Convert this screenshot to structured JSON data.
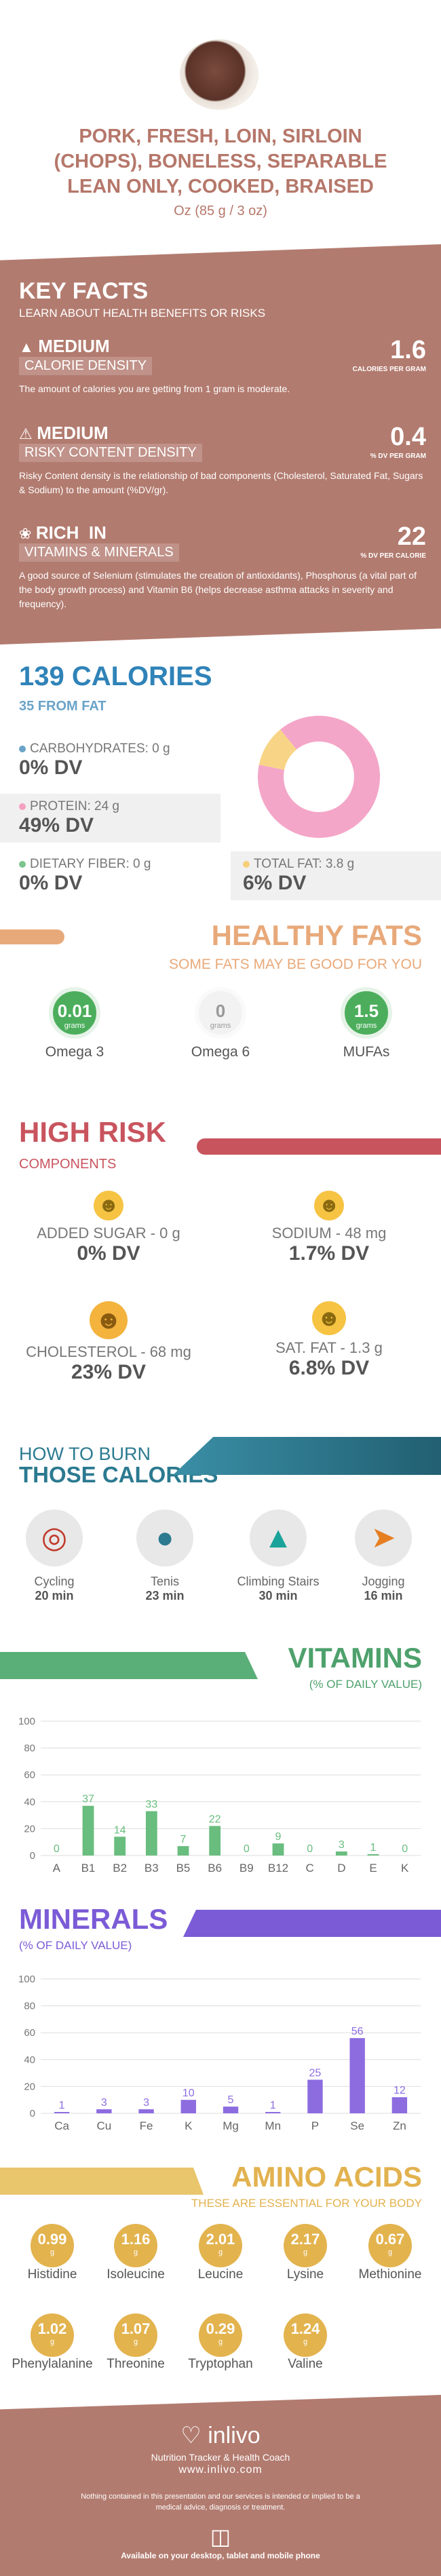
{
  "header": {
    "title_lines": [
      "PORK, FRESH, LOIN, SIRLOIN",
      "(CHOPS), BONELESS, SEPARABLE",
      "LEAN ONLY, COOKED, BRAISED"
    ],
    "serving": "Oz (85 g / 3 oz)"
  },
  "key_facts": {
    "title": "KEY FACTS",
    "subtitle": "LEARN ABOUT HEALTH BENEFITS OR RISKS",
    "items": [
      {
        "level": "MEDIUM",
        "label": "CALORIE DENSITY",
        "value": "1.6",
        "unit": "CALORIES PER GRAM",
        "text": "The amount of calories you are getting from 1 gram is moderate."
      },
      {
        "level": "MEDIUM",
        "label": "RISKY CONTENT DENSITY",
        "value": "0.4",
        "unit": "% DV PER GRAM",
        "text": "Risky Content density is the relationship of bad components (Cholesterol, Saturated Fat, Sugars & Sodium) to the amount (%DV/gr)."
      },
      {
        "level": "RICH  IN",
        "label": "VITAMINS & MINERALS",
        "value": "22",
        "unit": "% DV PER CALORIE",
        "text": "A good source of Selenium (stimulates the creation of antioxidants), Phosphorus (a vital part of the body growth process) and Vitamin B6 (helps decrease asthma attacks in severity and frequency)."
      }
    ]
  },
  "calories": {
    "title": "139 CALORIES",
    "subtitle": "35 FROM FAT",
    "nutrients": [
      {
        "name": "CARBOHYDRATES: 0 g",
        "dv": "0% DV",
        "color": "#6aa3c8"
      },
      {
        "name": "PROTEIN: 24 g",
        "dv": "49% DV",
        "color": "#f4a0c0"
      },
      {
        "name": "DIETARY FIBER: 0 g",
        "dv": "0% DV",
        "color": "#7cc48f"
      },
      {
        "name": "TOTAL FAT: 3.8 g",
        "dv": "6% DV",
        "color": "#f6cf7a"
      }
    ],
    "donut": [
      {
        "name": "PROTEIN",
        "value": 49,
        "color": "#f4a6c8"
      },
      {
        "name": "TOTAL FAT",
        "value": 6,
        "color": "#f8d586"
      }
    ]
  },
  "healthy_fats": {
    "title": "HEALTHY FATS",
    "subtitle": "SOME FATS MAY BE GOOD FOR YOU",
    "items": [
      {
        "value": "0.01",
        "unit": "grams",
        "name": "Omega 3",
        "color": "#4cae5c"
      },
      {
        "value": "0",
        "unit": "grams",
        "name": "Omega 6",
        "color": "#eeeeee"
      },
      {
        "value": "1.5",
        "unit": "grams",
        "name": "MUFAs",
        "color": "#4cae5c"
      }
    ]
  },
  "high_risk": {
    "title": "HIGH RISK",
    "subtitle": "COMPONENTS",
    "items": [
      {
        "name": "ADDED SUGAR - 0 g",
        "dv": "0% DV"
      },
      {
        "name": "SODIUM - 48 mg",
        "dv": "1.7% DV"
      },
      {
        "name": "CHOLESTEROL - 68 mg",
        "dv": "23% DV"
      },
      {
        "name": "SAT. FAT - 1.3 g",
        "dv": "6.8% DV"
      }
    ]
  },
  "burn": {
    "title1": "HOW TO BURN",
    "title2": "THOSE CALORIES",
    "items": [
      {
        "name": "Cycling",
        "time": "20 min"
      },
      {
        "name": "Tenis",
        "time": "23 min"
      },
      {
        "name": "Climbing Stairs",
        "time": "30 min"
      },
      {
        "name": "Jogging",
        "time": "16 min"
      }
    ]
  },
  "vitamins": {
    "title": "VITAMINS",
    "subtitle": "(% OF DAILY VALUE)",
    "chart_data": {
      "type": "bar",
      "categories": [
        "A",
        "B1",
        "B2",
        "B3",
        "B5",
        "B6",
        "B9",
        "B12",
        "C",
        "D",
        "E",
        "K"
      ],
      "values": [
        0,
        37,
        14,
        33,
        7,
        22,
        0,
        9,
        0,
        3,
        1,
        0
      ],
      "ylim": [
        0,
        100
      ],
      "yticks": [
        0,
        20,
        40,
        60,
        80,
        100
      ],
      "color": "#69bd7e"
    }
  },
  "minerals": {
    "title": "MINERALS",
    "subtitle": "(% OF DAILY VALUE)",
    "chart_data": {
      "type": "bar",
      "categories": [
        "Ca",
        "Cu",
        "Fe",
        "K",
        "Mg",
        "Mn",
        "P",
        "Se",
        "Zn"
      ],
      "values": [
        1,
        3,
        3,
        10,
        5,
        1,
        25,
        56,
        12
      ],
      "ylim": [
        0,
        100
      ],
      "yticks": [
        0,
        20,
        40,
        60,
        80,
        100
      ],
      "color": "#8d6ce0"
    }
  },
  "amino": {
    "title": "AMINO ACIDS",
    "subtitle": "THESE ARE ESSENTIAL FOR YOUR BODY",
    "items": [
      {
        "value": "0.99",
        "name": "Histidine"
      },
      {
        "value": "1.16",
        "name": "Isoleucine"
      },
      {
        "value": "2.01",
        "name": "Leucine"
      },
      {
        "value": "2.17",
        "name": "Lysine"
      },
      {
        "value": "0.67",
        "name": "Methionine"
      },
      {
        "value": "1.02",
        "name": "Phenylalanine"
      },
      {
        "value": "1.07",
        "name": "Threonine"
      },
      {
        "value": "0.29",
        "name": "Tryptophan"
      },
      {
        "value": "1.24",
        "name": "Valine"
      }
    ],
    "unit": "g"
  },
  "footer": {
    "brand": "inlivo",
    "tagline": "Nutrition Tracker & Health Coach",
    "url": "www.inlivo.com",
    "disclaimer": "Nothing contained in this presentation and our services is intended or implied to be a medical advice, diagnosis or treatment.",
    "devices": "Available on your desktop, tablet and mobile phone"
  }
}
